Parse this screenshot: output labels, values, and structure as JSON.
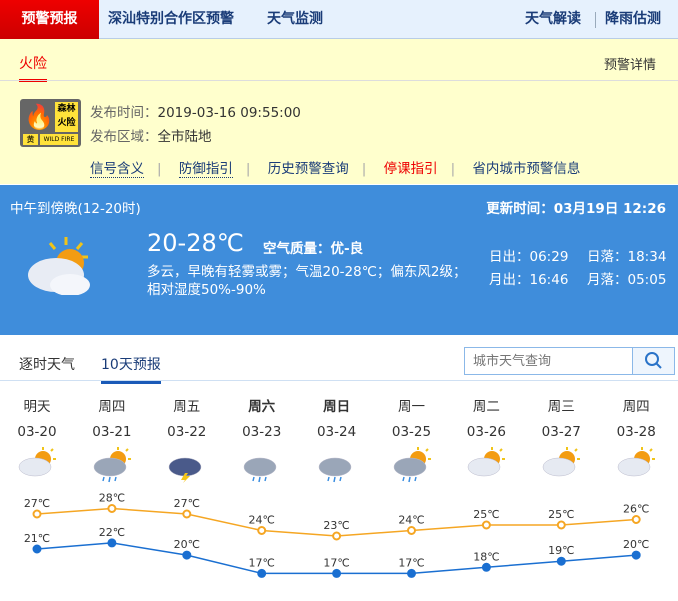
{
  "nav": {
    "items": [
      "预警预报",
      "深汕特别合作区预警",
      "天气监测",
      "天气解读",
      "降雨估测"
    ]
  },
  "warning": {
    "tab": "火险",
    "detail_link": "预警详情",
    "signal": {
      "title": "森林火险",
      "level": "黄",
      "en": "WILD FIRE",
      "color": "#ffe23a"
    },
    "time_label": "发布时间：",
    "time": "2019-03-16 09:55:00",
    "area_label": "发布区域：",
    "area": "全市陆地",
    "links": [
      "信号含义",
      "防御指引",
      "历史预警查询",
      "停课指引",
      "省内城市预警信息"
    ]
  },
  "now": {
    "period": "中午到傍晚(12-20时)",
    "updated": "更新时间：03月19日 12:26",
    "temp": "20-28℃",
    "air": "空气质量：优-良",
    "desc": "多云，早晚有轻雾或雾；气温20-28℃；偏东风2级；",
    "humidity": "相对湿度50%-90%",
    "sunrise": "日出：06:29",
    "sunset": "日落：18:34",
    "moonrise": "月出：16:46",
    "moonset": "月落：05:05",
    "icon": "partly-cloudy"
  },
  "tabs": [
    "逐时天气",
    "10天预报"
  ],
  "search": {
    "placeholder": "城市天气查询"
  },
  "forecast": [
    {
      "week": "明天",
      "date": "03-20",
      "icon": "partly-cloudy",
      "bold": false
    },
    {
      "week": "周四",
      "date": "03-21",
      "icon": "rain-cloud-sun",
      "bold": false
    },
    {
      "week": "周五",
      "date": "03-22",
      "icon": "thunderstorm",
      "bold": false
    },
    {
      "week": "周六",
      "date": "03-23",
      "icon": "rain",
      "bold": true
    },
    {
      "week": "周日",
      "date": "03-24",
      "icon": "rain",
      "bold": true
    },
    {
      "week": "周一",
      "date": "03-25",
      "icon": "rain-cloud-sun",
      "bold": false
    },
    {
      "week": "周二",
      "date": "03-26",
      "icon": "partly-cloudy",
      "bold": false
    },
    {
      "week": "周三",
      "date": "03-27",
      "icon": "partly-cloudy",
      "bold": false
    },
    {
      "week": "周四",
      "date": "03-28",
      "icon": "partly-cloudy",
      "bold": false
    }
  ],
  "chart_data": {
    "type": "line",
    "categories": [
      "03-20",
      "03-21",
      "03-22",
      "03-23",
      "03-24",
      "03-25",
      "03-26",
      "03-27",
      "03-28"
    ],
    "series": [
      {
        "values": [
          27,
          28,
          27,
          24,
          23,
          24,
          25,
          25,
          26
        ],
        "color": "#f5a623"
      },
      {
        "values": [
          21,
          22,
          20,
          17,
          17,
          17,
          18,
          19,
          20
        ],
        "color": "#1a6fd1"
      }
    ],
    "unit": "℃",
    "grid": false
  }
}
